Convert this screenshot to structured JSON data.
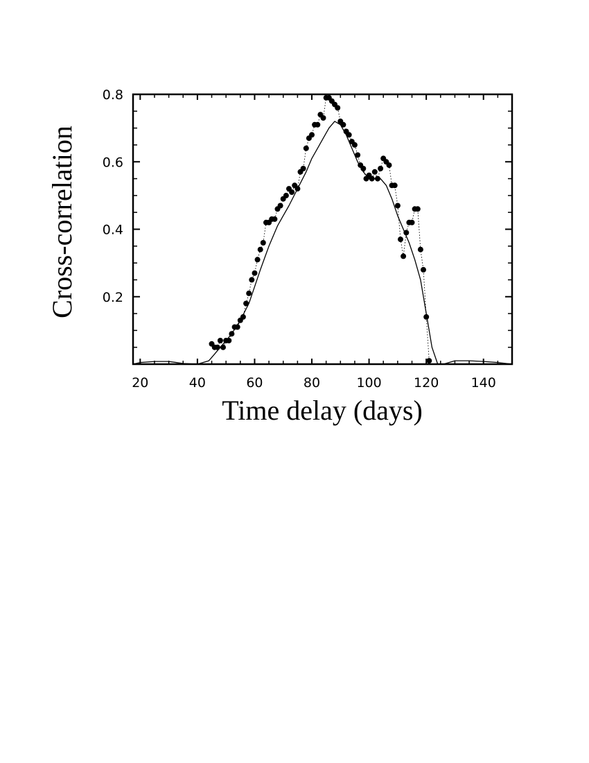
{
  "chart_data": {
    "type": "scatter",
    "title": "",
    "xlabel": "Time delay (days)",
    "ylabel": "Cross-correlation",
    "xlim": [
      17.5,
      150
    ],
    "ylim": [
      0,
      0.8
    ],
    "x_ticks": [
      20,
      40,
      60,
      80,
      100,
      120,
      140
    ],
    "x_tick_labels": [
      "20",
      "40",
      "60",
      "80",
      "100",
      "120",
      "140"
    ],
    "y_ticks": [
      0.2,
      0.4,
      0.6,
      0.8
    ],
    "y_tick_labels": [
      "0.2",
      "0.4",
      "0.6",
      "0.8"
    ],
    "grid": false,
    "series": [
      {
        "style": "points-with-dotted-line",
        "x": [
          45,
          46,
          47,
          48,
          49,
          50,
          51,
          52,
          53,
          54,
          55,
          56,
          57,
          58,
          59,
          60,
          61,
          62,
          63,
          64,
          65,
          66,
          67,
          68,
          69,
          70,
          71,
          72,
          73,
          74,
          75,
          76,
          77,
          78,
          79,
          80,
          81,
          82,
          83,
          84,
          85,
          86,
          87,
          88,
          89,
          90,
          91,
          92,
          93,
          94,
          95,
          96,
          97,
          98,
          99,
          100,
          101,
          102,
          103,
          104,
          105,
          106,
          107,
          108,
          109,
          110,
          111,
          112,
          113,
          114,
          115,
          116,
          117,
          118,
          119,
          120,
          121
        ],
        "y": [
          0.06,
          0.05,
          0.05,
          0.07,
          0.05,
          0.07,
          0.07,
          0.09,
          0.11,
          0.11,
          0.13,
          0.14,
          0.18,
          0.21,
          0.25,
          0.27,
          0.31,
          0.34,
          0.36,
          0.42,
          0.42,
          0.43,
          0.43,
          0.46,
          0.47,
          0.49,
          0.5,
          0.52,
          0.51,
          0.53,
          0.52,
          0.57,
          0.58,
          0.64,
          0.67,
          0.68,
          0.71,
          0.71,
          0.74,
          0.73,
          0.79,
          0.79,
          0.78,
          0.77,
          0.76,
          0.72,
          0.71,
          0.69,
          0.68,
          0.66,
          0.65,
          0.62,
          0.59,
          0.58,
          0.55,
          0.56,
          0.55,
          0.57,
          0.55,
          0.58,
          0.61,
          0.6,
          0.59,
          0.53,
          0.53,
          0.47,
          0.37,
          0.32,
          0.39,
          0.42,
          0.42,
          0.46,
          0.46,
          0.34,
          0.28,
          0.14,
          0.01
        ]
      },
      {
        "style": "solid-line",
        "x": [
          17.5,
          20,
          25,
          30,
          35,
          40,
          44,
          46,
          48,
          50,
          52,
          55,
          58,
          60,
          62,
          65,
          68,
          70,
          72,
          75,
          78,
          80,
          82,
          84,
          86,
          88,
          90,
          92,
          94,
          96,
          98,
          100,
          102,
          104,
          106,
          108,
          110,
          112,
          114,
          116,
          118,
          120,
          122,
          124,
          126,
          130,
          135,
          140,
          145,
          150
        ],
        "y": [
          0.0,
          0.005,
          0.008,
          0.008,
          0.002,
          0.0,
          0.01,
          0.03,
          0.05,
          0.07,
          0.09,
          0.13,
          0.18,
          0.23,
          0.28,
          0.35,
          0.41,
          0.44,
          0.47,
          0.52,
          0.57,
          0.61,
          0.64,
          0.67,
          0.7,
          0.72,
          0.71,
          0.68,
          0.64,
          0.6,
          0.57,
          0.55,
          0.55,
          0.55,
          0.53,
          0.49,
          0.44,
          0.4,
          0.36,
          0.31,
          0.25,
          0.15,
          0.05,
          0.0,
          0.0,
          0.01,
          0.01,
          0.008,
          0.005,
          0.0
        ]
      }
    ]
  }
}
